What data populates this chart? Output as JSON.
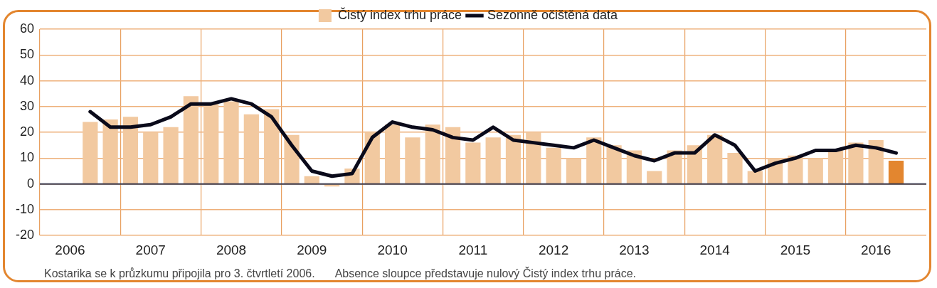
{
  "chart_data": {
    "type": "bar",
    "categories": [
      null,
      "2006",
      null,
      null,
      null,
      "2007",
      null,
      null,
      null,
      "2008",
      null,
      null,
      null,
      "2009",
      null,
      null,
      null,
      "2010",
      null,
      null,
      null,
      "2011",
      null,
      null,
      null,
      "2012",
      null,
      null,
      null,
      "2013",
      null,
      null,
      null,
      "2014",
      null,
      null,
      null,
      "2015",
      null,
      null,
      null,
      "2016",
      null,
      null
    ],
    "series": [
      {
        "name": "Čistý index trhu práce",
        "color": "#f2c9a0",
        "colors": [
          "#f2c9a0",
          "#f2c9a0",
          "#f2c9a0",
          "#f2c9a0",
          "#f2c9a0",
          "#f2c9a0",
          "#f2c9a0",
          "#f2c9a0",
          "#f2c9a0",
          "#f2c9a0",
          "#f2c9a0",
          "#f2c9a0",
          "#f2c9a0",
          "#f2c9a0",
          "#f2c9a0",
          "#f2c9a0",
          "#f2c9a0",
          "#f2c9a0",
          "#f2c9a0",
          "#f2c9a0",
          "#f2c9a0",
          "#f2c9a0",
          "#f2c9a0",
          "#f2c9a0",
          "#f2c9a0",
          "#f2c9a0",
          "#f2c9a0",
          "#f2c9a0",
          "#f2c9a0",
          "#f2c9a0",
          "#f2c9a0",
          "#f2c9a0",
          "#f2c9a0",
          "#f2c9a0",
          "#f2c9a0",
          "#f2c9a0",
          "#f2c9a0",
          "#f2c9a0",
          "#f2c9a0",
          "#f2c9a0",
          "#f2c9a0",
          "#f2c9a0",
          "#e3862f",
          "#f2c9a0"
        ],
        "values": [
          null,
          null,
          24,
          25,
          26,
          20,
          22,
          34,
          31,
          32,
          27,
          29,
          19,
          3,
          -1,
          6,
          20,
          23,
          18,
          23,
          22,
          16,
          18,
          19,
          20,
          14,
          10,
          18,
          15,
          13,
          5,
          13,
          15,
          19,
          12,
          5,
          10,
          11,
          10,
          13,
          16,
          17,
          9,
          null
        ]
      },
      {
        "name": "Sezonně očištěná data",
        "type": "line",
        "color": "#0a0a1a",
        "values": [
          null,
          null,
          28,
          22,
          22,
          23,
          26,
          31,
          31,
          33,
          31,
          26,
          15,
          5,
          3,
          4,
          18,
          24,
          22,
          21,
          18,
          17,
          22,
          17,
          16,
          15,
          14,
          17,
          14,
          11,
          9,
          12,
          12,
          19,
          15,
          5,
          8,
          10,
          13,
          13,
          15,
          14,
          12,
          null
        ]
      }
    ],
    "ylim": [
      -20,
      60
    ],
    "yticks": [
      -20,
      -10,
      0,
      10,
      20,
      30,
      40,
      50,
      60
    ],
    "grid": true,
    "legend": "top",
    "marker": "none",
    "line_style": "solid",
    "annotations": [
      "Kostarika se k průzkumu připojila pro 3. čtvrtletí 2006.",
      "Absence sloupce představuje nulový Čistý index trhu práce."
    ]
  }
}
